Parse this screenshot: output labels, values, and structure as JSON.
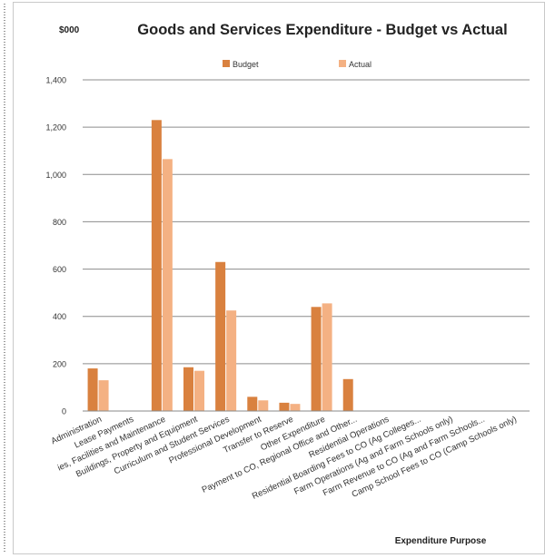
{
  "chart_data": {
    "type": "bar",
    "title": "Goods and Services Expenditure - Budget vs Actual",
    "unit_label": "$000",
    "xlabel": "Expenditure Purpose",
    "ylabel": "",
    "ylim": [
      0,
      1400
    ],
    "yticks": [
      0,
      200,
      400,
      600,
      800,
      1000,
      1200,
      1400
    ],
    "ytick_labels": [
      "0",
      "200",
      "400",
      "600",
      "800",
      "1,000",
      "1,200",
      "1,400"
    ],
    "grid": true,
    "legend_position": "top",
    "categories": [
      "Administration",
      "Lease Payments",
      "Utilities, Facilities and Maintenance",
      "Buildings, Property and Equipment",
      "Curriculum and Student Services",
      "Professional Development",
      "Transfer to Reserve",
      "Other Expenditure",
      "Payment to CO, Regional Office and Other...",
      "Residential Operations",
      "Residential Boarding Fees to CO (Ag Colleges...",
      "Farm Operations (Ag and Farm Schools only)",
      "Farm Revenue to CO (Ag and Farm Schools...",
      "Camp School Fees to CO (Camp Schools only)"
    ],
    "category_display": [
      "Administration",
      "Lease Payments",
      "ies, Facilities and Maintenance",
      "Buildings, Property and Equipment",
      "Curriculum and Student Services",
      "Professional Development",
      "Transfer to Reserve",
      "Other Expenditure",
      "Payment to CO, Regional Office and Other...",
      "Residential Operations",
      "Residential Boarding Fees to CO (Ag Colleges...",
      "Farm Operations (Ag and Farm Schools only)",
      "Farm Revenue to CO (Ag and Farm Schools...",
      "Camp School Fees to CO (Camp Schools only)"
    ],
    "series": [
      {
        "name": "Budget",
        "color": "#d9813f",
        "values": [
          180,
          0,
          1230,
          185,
          630,
          60,
          35,
          440,
          135,
          0,
          0,
          0,
          0,
          0
        ]
      },
      {
        "name": "Actual",
        "color": "#f4b183",
        "values": [
          130,
          0,
          1065,
          170,
          425,
          45,
          30,
          455,
          0,
          0,
          0,
          0,
          0,
          0
        ]
      }
    ]
  }
}
